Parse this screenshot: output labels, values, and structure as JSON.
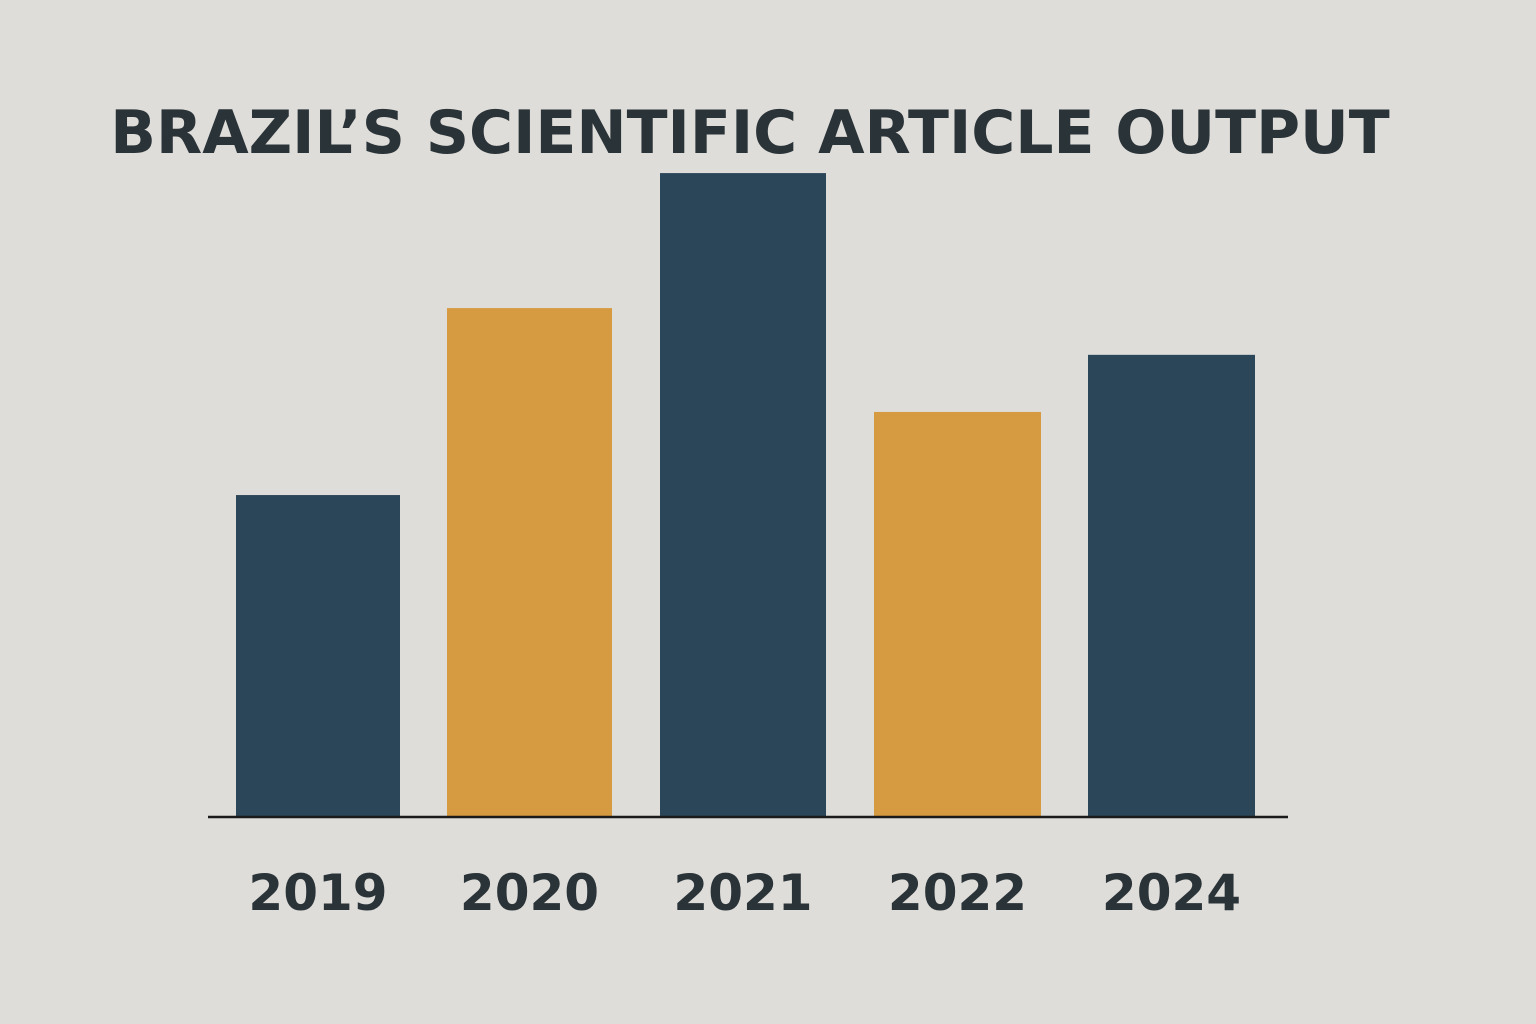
{
  "chart_data": {
    "type": "bar",
    "title": "BRAZIL’S SCIENTIFIC ARTICLE OUTPUT",
    "xlabel": "",
    "ylabel": "",
    "categories": [
      "2019",
      "2020",
      "2021",
      "2022",
      "2024"
    ],
    "values": [
      31,
      49,
      62,
      39,
      44.5
    ],
    "ylim": [
      0,
      70
    ],
    "grid": false,
    "legend": "none",
    "bar_colors": [
      "#2c4659",
      "#d69a40",
      "#2c4659",
      "#d69a40",
      "#2c4659"
    ],
    "axis_color": "#1a1a1a"
  }
}
